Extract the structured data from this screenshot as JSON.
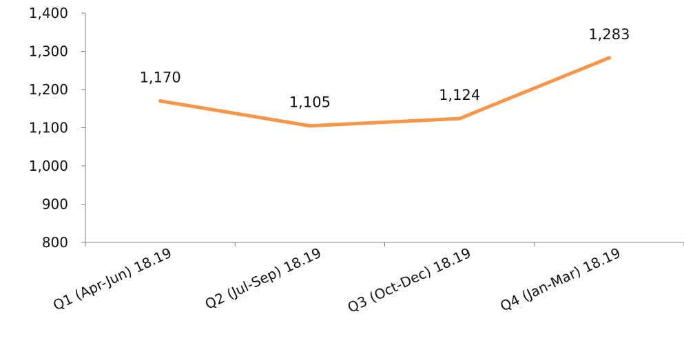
{
  "chart_data": {
    "type": "line",
    "categories": [
      "Q1 (Apr-Jun) 18.19",
      "Q2 (Jul-Sep) 18.19",
      "Q3 (Oct-Dec) 18.19",
      "Q4 (Jan-Mar) 18.19"
    ],
    "series": [
      {
        "values": [
          1170,
          1105,
          1124,
          1283
        ],
        "color": "#f79646"
      }
    ],
    "data_labels": [
      "1,170",
      "1,105",
      "1,124",
      "1,283"
    ],
    "ylim": [
      800,
      1400
    ],
    "y_ticks": [
      800,
      900,
      1000,
      1100,
      1200,
      1300,
      1400
    ],
    "y_tick_labels": [
      "800",
      "900",
      "1,000",
      "1,100",
      "1,200",
      "1,300",
      "1,400"
    ],
    "grid": false,
    "legend": "none"
  }
}
